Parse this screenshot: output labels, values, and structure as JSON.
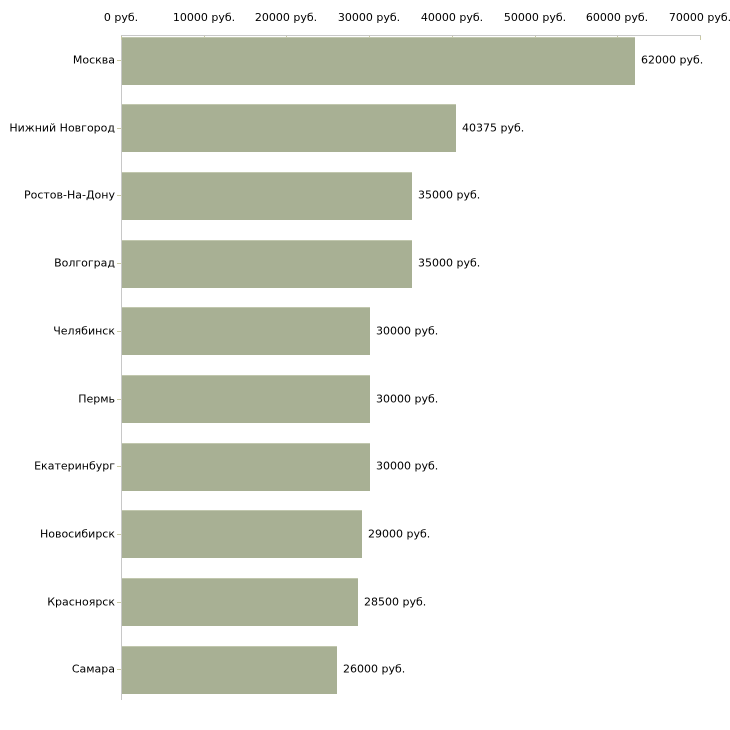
{
  "chart_data": {
    "type": "bar",
    "orientation": "horizontal",
    "title": "",
    "xlabel": "",
    "ylabel": "",
    "unit": "руб.",
    "categories": [
      "Москва",
      "Нижний Новгород",
      "Ростов-На-Дону",
      "Волгоград",
      "Челябинск",
      "Пермь",
      "Екатеринбург",
      "Новосибирск",
      "Красноярск",
      "Самара"
    ],
    "values": [
      62000,
      40375,
      35000,
      35000,
      30000,
      30000,
      30000,
      29000,
      28500,
      26000
    ],
    "value_labels": [
      "62000 руб.",
      "40375 руб.",
      "35000 руб.",
      "35000 руб.",
      "30000 руб.",
      "30000 руб.",
      "30000 руб.",
      "29000 руб.",
      "28500 руб.",
      "26000 руб."
    ],
    "x_ticks": [
      0,
      10000,
      20000,
      30000,
      40000,
      50000,
      60000,
      70000
    ],
    "x_tick_labels": [
      "0 руб.",
      "10000 руб.",
      "20000 руб.",
      "30000 руб.",
      "40000 руб.",
      "50000 руб.",
      "60000 руб.",
      "70000 руб."
    ],
    "xlim": [
      0,
      70000
    ],
    "grid": "off",
    "legend": "none",
    "bar_color": "#a8b094",
    "axis_color": "#c8c8c8",
    "tick_color": "#c9c9a3",
    "text_color": "#000000",
    "background_color": "#ffffff"
  }
}
